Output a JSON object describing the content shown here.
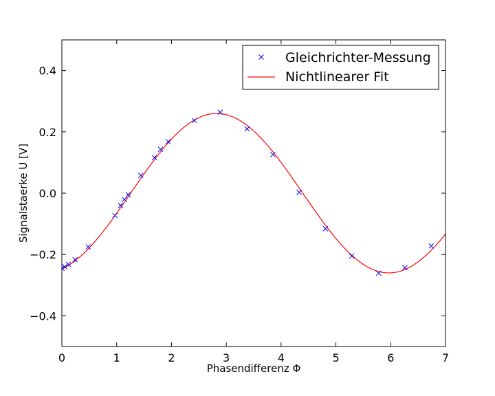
{
  "chart_data": {
    "type": "scatter",
    "xlabel": "Phasendifferenz Φ",
    "ylabel": "Signalstaerke U [V]",
    "xlim": [
      0,
      7
    ],
    "ylim": [
      -0.5,
      0.5
    ],
    "xticks": [
      0,
      1,
      2,
      3,
      4,
      5,
      6,
      7
    ],
    "xtick_labels": [
      "0",
      "1",
      "2",
      "3",
      "4",
      "5",
      "6",
      "7"
    ],
    "yticks": [
      -0.4,
      -0.2,
      0.0,
      0.2,
      0.4
    ],
    "ytick_labels": [
      "−0.4",
      "−0.2",
      "0.0",
      "0.2",
      "0.4"
    ],
    "grid": false,
    "legend_position": "top-right",
    "series": [
      {
        "name": "Gleichrichter-Messung",
        "kind": "markers",
        "marker": "x",
        "color": "#0000ff",
        "x": [
          0.0,
          0.05,
          0.12,
          0.24,
          0.48,
          0.97,
          1.07,
          1.14,
          1.21,
          1.44,
          1.69,
          1.8,
          1.94,
          2.42,
          2.89,
          3.38,
          3.85,
          4.33,
          4.81,
          5.29,
          5.78,
          6.26,
          6.74
        ],
        "y": [
          -0.245,
          -0.24,
          -0.232,
          -0.217,
          -0.175,
          -0.073,
          -0.04,
          -0.02,
          -0.005,
          0.058,
          0.116,
          0.143,
          0.168,
          0.237,
          0.264,
          0.21,
          0.126,
          0.003,
          -0.116,
          -0.205,
          -0.261,
          -0.243,
          -0.172
        ]
      },
      {
        "name": "Nichtlinearer Fit",
        "kind": "line",
        "color": "#ff0000",
        "model": "A*sin(x - phi) + c",
        "params": {
          "A": 0.26,
          "phi": 1.2546,
          "c": 0.0
        }
      }
    ]
  }
}
